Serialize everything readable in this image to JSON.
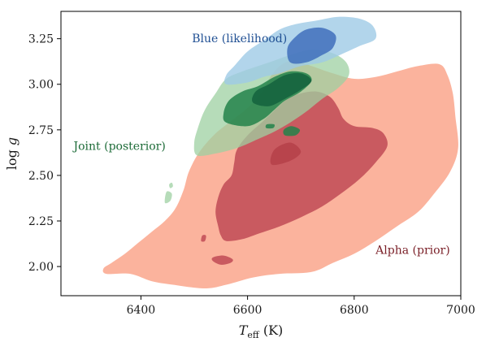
{
  "chart_data": {
    "type": "contour",
    "title": "",
    "xlabel": {
      "main": "T",
      "sub": "eff",
      "unit": " (K)"
    },
    "ylabel": {
      "main": "log ",
      "italic": "g"
    },
    "xlim": [
      6250,
      7000
    ],
    "ylim": [
      3.4,
      1.84
    ],
    "y_inverted": true,
    "grid": false,
    "xticks": [
      {
        "value": 6400,
        "label": "6400"
      },
      {
        "value": 6600,
        "label": "6600"
      },
      {
        "value": 6800,
        "label": "6800"
      },
      {
        "value": 7000,
        "label": "7000"
      }
    ],
    "yticks": [
      {
        "value": 2.0,
        "label": "2.00"
      },
      {
        "value": 2.25,
        "label": "2.25"
      },
      {
        "value": 2.5,
        "label": "2.50"
      },
      {
        "value": 2.75,
        "label": "2.75"
      },
      {
        "value": 3.0,
        "label": "3.00"
      },
      {
        "value": 3.25,
        "label": "3.25"
      }
    ],
    "series": [
      {
        "name": "Alpha (prior)",
        "label_pos": {
          "x": 6910,
          "y": 2.07
        },
        "label_color": "#7a1f27",
        "levels": [
          {
            "color": "#fbb39d",
            "opacity": 1,
            "regions": [
              [
                [
                  6335,
                  1.96
                ],
                [
                  6380,
                  1.96
                ],
                [
                  6420,
                  1.92
                ],
                [
                  6460,
                  1.9
                ],
                [
                  6520,
                  1.88
                ],
                [
                  6560,
                  1.9
                ],
                [
                  6610,
                  1.94
                ],
                [
                  6660,
                  1.96
                ],
                [
                  6720,
                  1.97
                ],
                [
                  6760,
                  2.02
                ],
                [
                  6800,
                  2.07
                ],
                [
                  6840,
                  2.14
                ],
                [
                  6880,
                  2.22
                ],
                [
                  6920,
                  2.3
                ],
                [
                  6950,
                  2.4
                ],
                [
                  6980,
                  2.52
                ],
                [
                  6995,
                  2.65
                ],
                [
                  6990,
                  2.82
                ],
                [
                  6985,
                  2.95
                ],
                [
                  6975,
                  3.05
                ],
                [
                  6960,
                  3.11
                ],
                [
                  6920,
                  3.1
                ],
                [
                  6880,
                  3.07
                ],
                [
                  6840,
                  3.04
                ],
                [
                  6800,
                  3.03
                ],
                [
                  6760,
                  3.06
                ],
                [
                  6720,
                  3.1
                ],
                [
                  6690,
                  3.13
                ],
                [
                  6665,
                  3.11
                ],
                [
                  6645,
                  3.05
                ],
                [
                  6625,
                  2.95
                ],
                [
                  6600,
                  2.87
                ],
                [
                  6570,
                  2.8
                ],
                [
                  6540,
                  2.73
                ],
                [
                  6510,
                  2.63
                ],
                [
                  6490,
                  2.52
                ],
                [
                  6480,
                  2.42
                ],
                [
                  6465,
                  2.32
                ],
                [
                  6445,
                  2.25
                ],
                [
                  6420,
                  2.19
                ],
                [
                  6395,
                  2.13
                ],
                [
                  6370,
                  2.07
                ],
                [
                  6345,
                  2.02
                ],
                [
                  6330,
                  1.99
                ]
              ]
            ]
          },
          {
            "color": "#c95a60",
            "opacity": 1,
            "regions": [
              [
                [
                  6560,
                  2.14
                ],
                [
                  6590,
                  2.15
                ],
                [
                  6620,
                  2.18
                ],
                [
                  6660,
                  2.22
                ],
                [
                  6700,
                  2.27
                ],
                [
                  6740,
                  2.33
                ],
                [
                  6775,
                  2.4
                ],
                [
                  6810,
                  2.48
                ],
                [
                  6840,
                  2.57
                ],
                [
                  6862,
                  2.66
                ],
                [
                  6855,
                  2.73
                ],
                [
                  6835,
                  2.76
                ],
                [
                  6800,
                  2.77
                ],
                [
                  6780,
                  2.81
                ],
                [
                  6770,
                  2.87
                ],
                [
                  6755,
                  2.93
                ],
                [
                  6730,
                  2.96
                ],
                [
                  6700,
                  2.95
                ],
                [
                  6675,
                  2.92
                ],
                [
                  6655,
                  2.87
                ],
                [
                  6630,
                  2.8
                ],
                [
                  6600,
                  2.72
                ],
                [
                  6580,
                  2.64
                ],
                [
                  6575,
                  2.57
                ],
                [
                  6570,
                  2.5
                ],
                [
                  6555,
                  2.45
                ],
                [
                  6545,
                  2.38
                ],
                [
                  6540,
                  2.3
                ],
                [
                  6545,
                  2.22
                ],
                [
                  6550,
                  2.17
                ]
              ],
              [
                [
                  6535,
                  2.03
                ],
                [
                  6550,
                  2.01
                ],
                [
                  6568,
                  2.02
                ],
                [
                  6572,
                  2.04
                ],
                [
                  6555,
                  2.06
                ],
                [
                  6535,
                  2.05
                ]
              ],
              [
                [
                  6513,
                  2.14
                ],
                [
                  6520,
                  2.14
                ],
                [
                  6522,
                  2.17
                ],
                [
                  6515,
                  2.17
                ]
              ]
            ]
          },
          {
            "color": "#a52a36",
            "opacity": 0.45,
            "regions": [
              [
                [
                  6645,
                  2.56
                ],
                [
                  6680,
                  2.58
                ],
                [
                  6700,
                  2.63
                ],
                [
                  6680,
                  2.68
                ],
                [
                  6650,
                  2.64
                ]
              ]
            ]
          }
        ]
      },
      {
        "name": "Joint (posterior)",
        "label_pos": {
          "x": 6360,
          "y": 2.64
        },
        "label_color": "#1d6b38",
        "levels": [
          {
            "color": "#9ed0a2",
            "opacity": 0.75,
            "regions": [
              [
                [
                  6505,
                  2.61
                ],
                [
                  6540,
                  2.62
                ],
                [
                  6580,
                  2.65
                ],
                [
                  6620,
                  2.7
                ],
                [
                  6650,
                  2.74
                ],
                [
                  6680,
                  2.79
                ],
                [
                  6710,
                  2.85
                ],
                [
                  6740,
                  2.92
                ],
                [
                  6770,
                  2.98
                ],
                [
                  6790,
                  3.05
                ],
                [
                  6785,
                  3.12
                ],
                [
                  6760,
                  3.17
                ],
                [
                  6720,
                  3.19
                ],
                [
                  6680,
                  3.16
                ],
                [
                  6650,
                  3.13
                ],
                [
                  6620,
                  3.1
                ],
                [
                  6590,
                  3.07
                ],
                [
                  6560,
                  3.03
                ],
                [
                  6540,
                  2.95
                ],
                [
                  6520,
                  2.86
                ],
                [
                  6508,
                  2.77
                ],
                [
                  6500,
                  2.68
                ]
              ],
              [
                [
                  6445,
                  2.35
                ],
                [
                  6455,
                  2.36
                ],
                [
                  6458,
                  2.4
                ],
                [
                  6448,
                  2.41
                ]
              ],
              [
                [
                  6455,
                  2.43
                ],
                [
                  6460,
                  2.44
                ],
                [
                  6458,
                  2.46
                ],
                [
                  6453,
                  2.45
                ]
              ]
            ]
          },
          {
            "color": "#23824a",
            "opacity": 0.85,
            "regions": [
              [
                [
                  6560,
                  2.79
                ],
                [
                  6600,
                  2.77
                ],
                [
                  6630,
                  2.81
                ],
                [
                  6650,
                  2.86
                ],
                [
                  6670,
                  2.91
                ],
                [
                  6700,
                  2.96
                ],
                [
                  6720,
                  3.02
                ],
                [
                  6710,
                  3.06
                ],
                [
                  6680,
                  3.07
                ],
                [
                  6650,
                  3.04
                ],
                [
                  6620,
                  2.99
                ],
                [
                  6590,
                  2.96
                ],
                [
                  6565,
                  2.91
                ],
                [
                  6555,
                  2.84
                ]
              ],
              [
                [
                  6670,
                  2.72
                ],
                [
                  6690,
                  2.72
                ],
                [
                  6698,
                  2.75
                ],
                [
                  6682,
                  2.77
                ],
                [
                  6668,
                  2.75
                ]
              ],
              [
                [
                  6635,
                  2.76
                ],
                [
                  6648,
                  2.76
                ],
                [
                  6650,
                  2.78
                ],
                [
                  6636,
                  2.78
                ]
              ]
            ]
          },
          {
            "color": "#0f5c3a",
            "opacity": 0.75,
            "regions": [
              [
                [
                  6610,
                  2.9
                ],
                [
                  6640,
                  2.88
                ],
                [
                  6670,
                  2.92
                ],
                [
                  6700,
                  2.97
                ],
                [
                  6720,
                  3.02
                ],
                [
                  6700,
                  3.06
                ],
                [
                  6670,
                  3.05
                ],
                [
                  6640,
                  3.0
                ],
                [
                  6615,
                  2.96
                ]
              ]
            ]
          }
        ]
      },
      {
        "name": "Blue (likelihood)",
        "label_pos": {
          "x": 6585,
          "y": 3.23
        },
        "label_color": "#1f4f93",
        "levels": [
          {
            "color": "#9fcbe6",
            "opacity": 0.8,
            "regions": [
              [
                [
                  6560,
                  3.0
                ],
                [
                  6600,
                  3.01
                ],
                [
                  6630,
                  3.04
                ],
                [
                  6660,
                  3.06
                ],
                [
                  6700,
                  3.1
                ],
                [
                  6740,
                  3.12
                ],
                [
                  6780,
                  3.17
                ],
                [
                  6810,
                  3.21
                ],
                [
                  6840,
                  3.25
                ],
                [
                  6835,
                  3.32
                ],
                [
                  6810,
                  3.36
                ],
                [
                  6770,
                  3.37
                ],
                [
                  6730,
                  3.35
                ],
                [
                  6690,
                  3.33
                ],
                [
                  6660,
                  3.3
                ],
                [
                  6630,
                  3.24
                ],
                [
                  6600,
                  3.18
                ],
                [
                  6575,
                  3.1
                ],
                [
                  6560,
                  3.05
                ]
              ]
            ]
          },
          {
            "color": "#3f6ebc",
            "opacity": 0.85,
            "regions": [
              [
                [
                  6680,
                  3.12
                ],
                [
                  6710,
                  3.12
                ],
                [
                  6740,
                  3.16
                ],
                [
                  6760,
                  3.2
                ],
                [
                  6765,
                  3.27
                ],
                [
                  6740,
                  3.31
                ],
                [
                  6710,
                  3.3
                ],
                [
                  6690,
                  3.26
                ],
                [
                  6675,
                  3.2
                ]
              ]
            ]
          }
        ]
      }
    ]
  }
}
